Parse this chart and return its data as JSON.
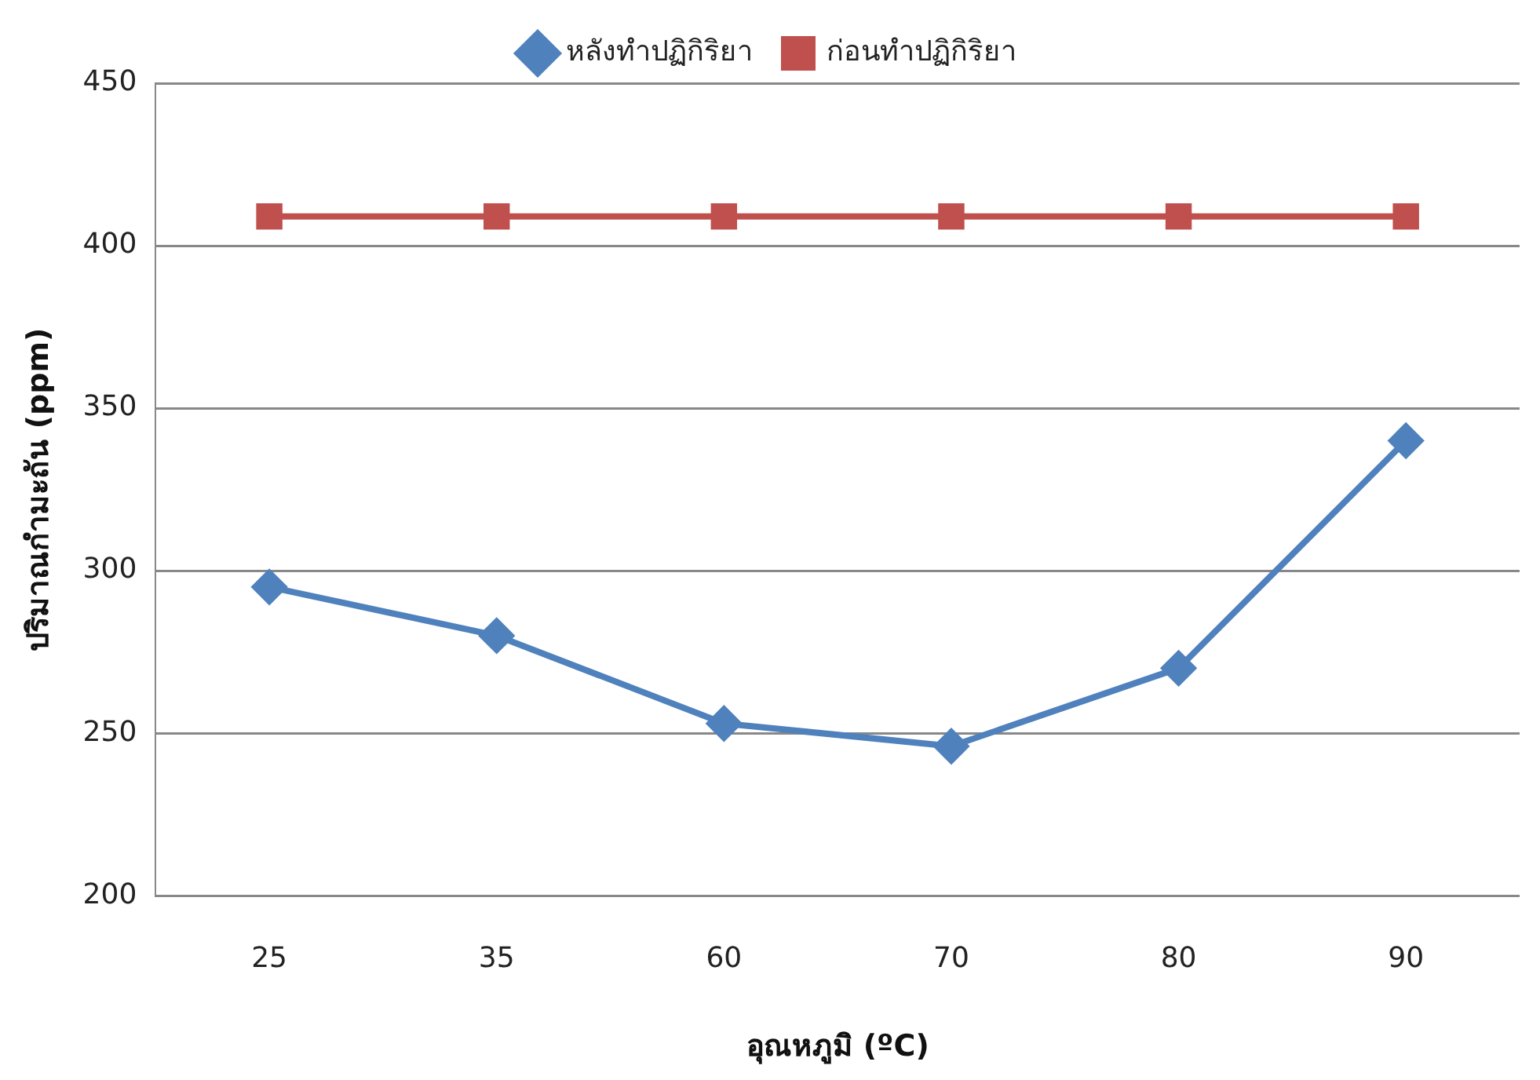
{
  "chart_data": {
    "type": "line",
    "xlabel": "อุณหภูมิ (ºC)",
    "ylabel": "ปริมาณกำมะถัน (ppm)",
    "categories": [
      "25",
      "35",
      "60",
      "70",
      "80",
      "90"
    ],
    "series": [
      {
        "name": "หลังทำปฏิกิริยา",
        "color": "#4f81bd",
        "marker": "diamond",
        "values": [
          295,
          280,
          253,
          246,
          270,
          340
        ]
      },
      {
        "name": "ก่อนทำปฏิกิริยา",
        "color": "#c0504d",
        "marker": "square",
        "values": [
          409,
          409,
          409,
          409,
          409,
          409
        ]
      }
    ],
    "ylim": [
      200,
      450
    ],
    "yticks": [
      200,
      250,
      300,
      350,
      400,
      450
    ],
    "grid": "y",
    "legend": "top",
    "line_style": "solid"
  }
}
